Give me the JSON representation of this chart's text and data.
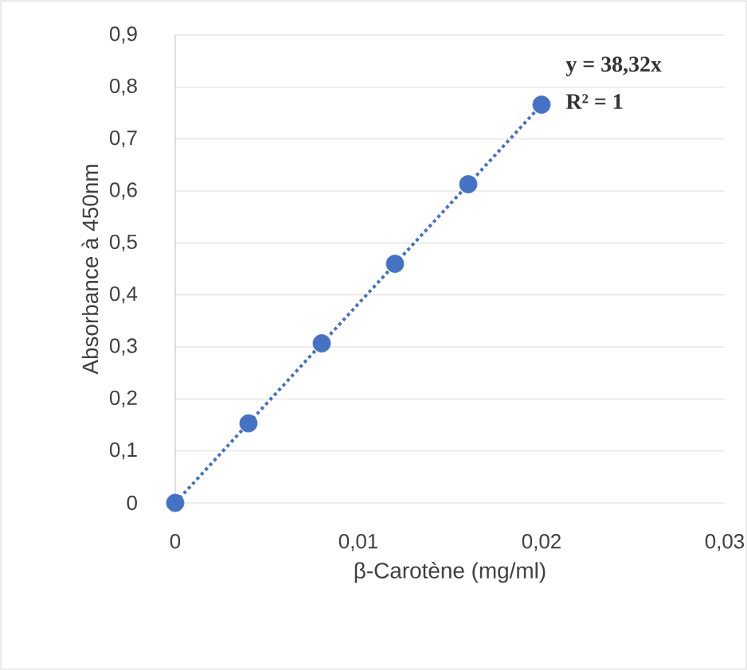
{
  "chart_data": {
    "type": "scatter",
    "xlabel": "β-Carotène (mg/ml)",
    "ylabel": "Absorbance  à 450nm",
    "series": [
      {
        "color": "#4472c4",
        "marker": "circle",
        "x": [
          0,
          0.004,
          0.008,
          0.012,
          0.016,
          0.02
        ],
        "values": [
          0,
          0.153,
          0.307,
          0.46,
          0.613,
          0.766
        ]
      },
      {
        "type": "line",
        "color": "#4472c4",
        "line_style": "dotted",
        "x": [
          0,
          0.02
        ],
        "values": [
          0,
          0.766
        ]
      }
    ],
    "annotations": [
      "y = 38,32x",
      "R² = 1"
    ],
    "xlim": [
      0,
      0.03
    ],
    "ylim": [
      0,
      0.9
    ],
    "xticks": [
      {
        "value": 0,
        "label": "0"
      },
      {
        "value": 0.01,
        "label": "0,01"
      },
      {
        "value": 0.02,
        "label": "0,02"
      },
      {
        "value": 0.03,
        "label": "0,03"
      }
    ],
    "yticks": [
      {
        "value": 0,
        "label": "0"
      },
      {
        "value": 0.1,
        "label": "0,1"
      },
      {
        "value": 0.2,
        "label": "0,2"
      },
      {
        "value": 0.3,
        "label": "0,3"
      },
      {
        "value": 0.4,
        "label": "0,4"
      },
      {
        "value": 0.5,
        "label": "0,5"
      },
      {
        "value": 0.6,
        "label": "0,6"
      },
      {
        "value": 0.7,
        "label": "0,7"
      },
      {
        "value": 0.8,
        "label": "0,8"
      },
      {
        "value": 0.9,
        "label": "0,9"
      }
    ],
    "grid": "y"
  }
}
